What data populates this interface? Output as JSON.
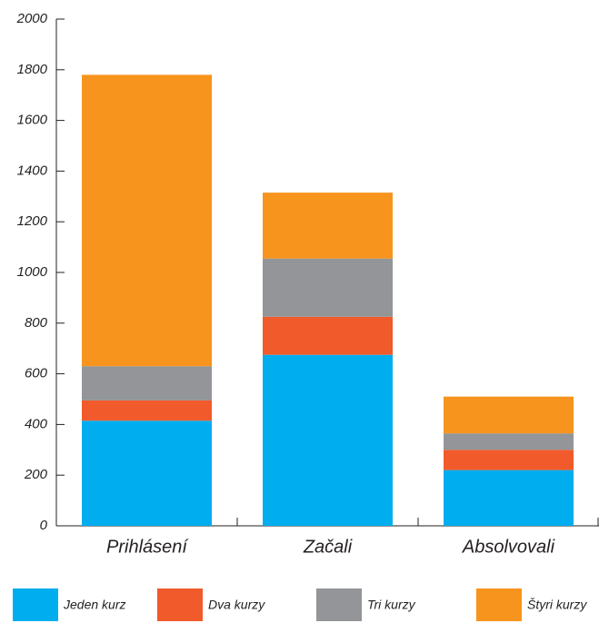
{
  "chart_data": {
    "type": "bar",
    "stacked": true,
    "categories": [
      "Prihlásení",
      "Začali",
      "Absolvovali"
    ],
    "series": [
      {
        "name": "Jeden kurz",
        "color": "#00aeef",
        "values": [
          415,
          675,
          220
        ]
      },
      {
        "name": "Dva kurzy",
        "color": "#f15a2b",
        "values": [
          80,
          150,
          80
        ]
      },
      {
        "name": "Tri kurzy",
        "color": "#939598",
        "values": [
          135,
          230,
          65
        ]
      },
      {
        "name": "Štyri kurzy",
        "color": "#f7941d",
        "values": [
          1150,
          260,
          145
        ]
      }
    ],
    "ylim": [
      0,
      2000
    ],
    "yticks": [
      0,
      200,
      400,
      600,
      800,
      1000,
      1200,
      1400,
      1600,
      1800,
      2000
    ],
    "grid": false,
    "legend": "bottom"
  }
}
